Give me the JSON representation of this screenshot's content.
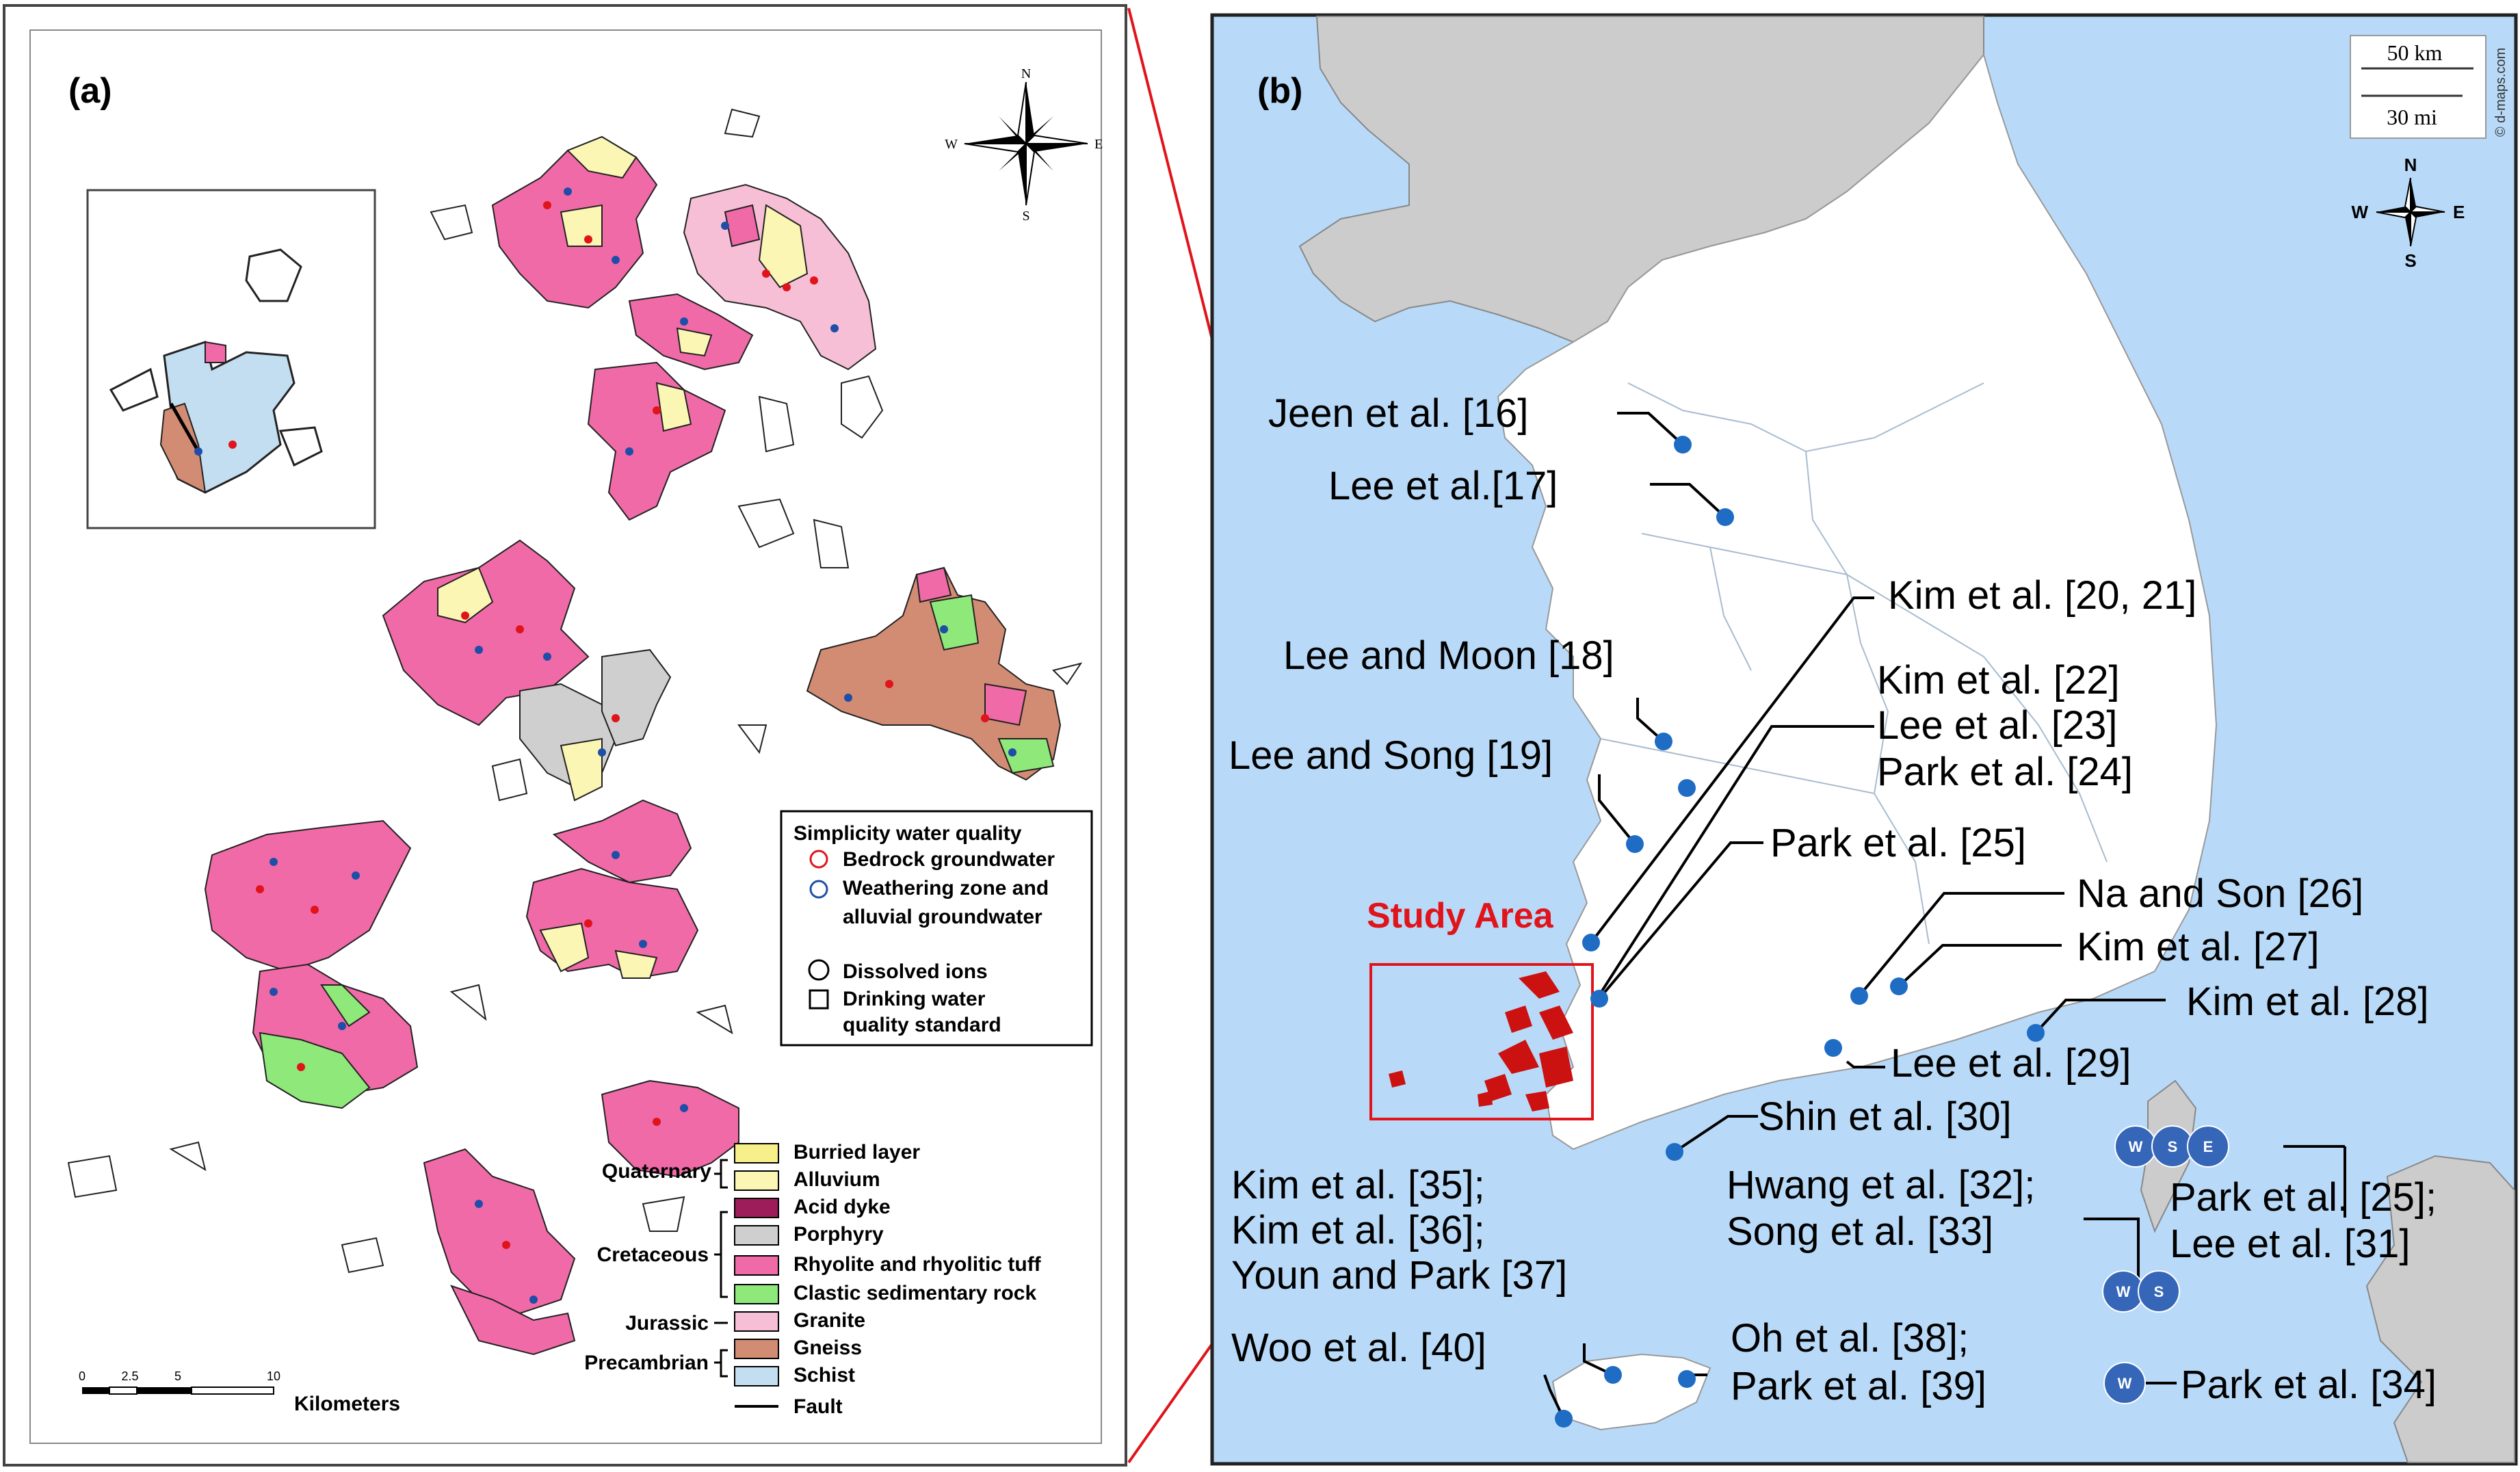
{
  "panel_a": {
    "label": "(a)",
    "legend_quality": {
      "title": "Simplicity water quality",
      "bedrock": "Bedrock groundwater",
      "weathering_line1": "Weathering zone and",
      "weathering_line2": "alluvial groundwater",
      "dissolved": "Dissolved ions",
      "drinking_line1": "Drinking water",
      "drinking_line2": "quality standard"
    },
    "geology": {
      "eras": [
        {
          "name": "Quaternary"
        },
        {
          "name": "Cretaceous"
        },
        {
          "name": "Jurassic"
        },
        {
          "name": "Precambrian"
        }
      ],
      "units": [
        {
          "label": "Burried layer",
          "color": "#f7f08a"
        },
        {
          "label": "Alluvium",
          "color": "#fbf6b4"
        },
        {
          "label": "Acid dyke",
          "color": "#9c1d5a"
        },
        {
          "label": "Porphyry",
          "color": "#cfcfcf"
        },
        {
          "label": "Rhyolite and rhyolitic tuff",
          "color": "#f06aa7"
        },
        {
          "label": "Clastic sedimentary rock",
          "color": "#8ee87a"
        },
        {
          "label": "Granite",
          "color": "#f7bfd6"
        },
        {
          "label": "Gneiss",
          "color": "#d28c73"
        },
        {
          "label": "Schist",
          "color": "#c2def0"
        }
      ],
      "fault": "Fault"
    },
    "scale": {
      "ticks": [
        "0",
        "2.5",
        "5",
        "10"
      ],
      "unit": "Kilometers"
    },
    "compass": [
      "N",
      "E",
      "S",
      "W"
    ]
  },
  "panel_b": {
    "label": "(b)",
    "study_area": "Study Area",
    "scale": {
      "km": "50 km",
      "mi": "30 mi"
    },
    "credit": "© d-maps.com",
    "compass": [
      "N",
      "E",
      "S",
      "W"
    ],
    "references": [
      "Jeen et al. [16]",
      "Lee et al.[17]",
      "Lee and Moon [18]",
      "Lee and Song [19]",
      "Kim et al. [20, 21]",
      "Kim et al. [22]",
      "Lee et al. [23]",
      "Park et al. [24]",
      "Park et al. [25]",
      "Na and Son [26]",
      "Kim et al. [27]",
      "Kim et al. [28]",
      "Lee et al. [29]",
      "Shin et al. [30]",
      "Hwang et al. [32];",
      "Song et al. [33]",
      "Park et al. [25];",
      "Lee et al. [31]",
      "Kim et al. [35];",
      "Kim et al. [36];",
      "Youn and Park [37]",
      "Woo et al. [40]",
      "Oh et al. [38];",
      "Park et al. [39]",
      "Park et al. [34]"
    ],
    "site_markers": {
      "a": [
        "W",
        "S",
        "E"
      ],
      "b": [
        "W",
        "S"
      ],
      "c": [
        "W"
      ]
    }
  }
}
